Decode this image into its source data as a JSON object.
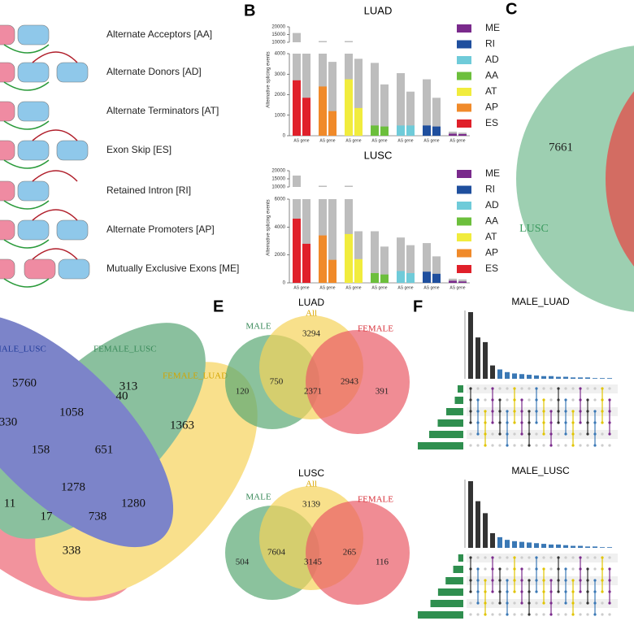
{
  "panel_a": {
    "events": [
      "Alternate Acceptors [AA]",
      "Alternate Donors [AD]",
      "Alternate Terminators [AT]",
      "Exon Skip [ES]",
      "Retained Intron [RI]",
      "Alternate Promoters [AP]",
      "Mutually Exclusive Exons [ME]"
    ]
  },
  "panel_b": {
    "label": "B",
    "ylabel": "Alternative splicing events",
    "x_label": "AS gene",
    "series": [
      {
        "name": "ME",
        "color": "#7a2a8c"
      },
      {
        "name": "RI",
        "color": "#1f4f9e"
      },
      {
        "name": "AD",
        "color": "#6fcbd9"
      },
      {
        "name": "AA",
        "color": "#6cbf3c"
      },
      {
        "name": "AT",
        "color": "#f1ec3d"
      },
      {
        "name": "AP",
        "color": "#f08a2a"
      },
      {
        "name": "ES",
        "color": "#e0202a"
      }
    ],
    "charts": [
      {
        "title": "LUAD",
        "ylim": [
          0,
          4000
        ],
        "yticks": [
          0,
          1000,
          2000,
          3000,
          4000
        ],
        "ylim_upper": [
          10000,
          20000
        ],
        "yticks_upper": [
          10000,
          15000,
          20000
        ],
        "totals": [
          [
            200,
            150
          ],
          [
            2750,
            1850
          ],
          [
            3050,
            2150
          ],
          [
            3550,
            2500
          ],
          [
            9000,
            3750
          ],
          [
            9000,
            3600
          ],
          [
            16000,
            4000
          ]
        ],
        "values": [
          [
            100,
            80
          ],
          [
            500,
            450
          ],
          [
            500,
            500
          ],
          [
            500,
            450
          ],
          [
            2750,
            1350
          ],
          [
            2400,
            1200
          ],
          [
            2700,
            1850
          ]
        ]
      },
      {
        "title": "LUSC",
        "ylim": [
          0,
          6000
        ],
        "yticks": [
          0,
          2000,
          4000,
          6000
        ],
        "ylim_upper": [
          10000,
          20000
        ],
        "yticks_upper": [
          10000,
          15000,
          20000
        ],
        "totals": [
          [
            300,
            250
          ],
          [
            2850,
            1900
          ],
          [
            3250,
            2700
          ],
          [
            3700,
            2600
          ],
          [
            9600,
            3700
          ],
          [
            9800,
            6000
          ],
          [
            17000,
            6000
          ]
        ],
        "values": [
          [
            150,
            100
          ],
          [
            800,
            650
          ],
          [
            850,
            700
          ],
          [
            700,
            600
          ],
          [
            3500,
            1700
          ],
          [
            3400,
            1650
          ],
          [
            4600,
            2800
          ]
        ]
      }
    ]
  },
  "panel_c": {
    "label": "C",
    "count": "7661",
    "set": "LUSC"
  },
  "panel_d": {
    "sets": [
      "MALE_LUSC",
      "FEMALE_LUSC",
      "FEMALE_LUAD"
    ],
    "counts": [
      "5760",
      "313",
      "330",
      "1058",
      "40",
      "1363",
      "158",
      "651",
      "1278",
      "11",
      "17",
      "738",
      "1280",
      "338"
    ]
  },
  "panel_e": {
    "label": "E",
    "venns": [
      {
        "title": "LUAD",
        "sets": [
          "MALE",
          "All",
          "FEMALE"
        ],
        "counts": [
          "3294",
          "120",
          "750",
          "2371",
          "2943",
          "391"
        ]
      },
      {
        "title": "LUSC",
        "sets": [
          "MALE",
          "All",
          "FEMALE"
        ],
        "counts": [
          "3139",
          "504",
          "7604",
          "3145",
          "265",
          "116"
        ]
      }
    ]
  },
  "panel_f": {
    "label": "F",
    "plots": [
      {
        "title": "MALE_LUAD",
        "intersections": [
          100,
          62,
          55,
          20,
          14,
          10,
          8,
          7,
          6,
          5,
          4,
          4,
          3,
          3,
          2,
          2,
          2,
          1,
          1,
          1
        ],
        "set_sizes": [
          10,
          15,
          30,
          45,
          60,
          80
        ]
      },
      {
        "title": "MALE_LUSC",
        "intersections": [
          100,
          70,
          52,
          22,
          16,
          12,
          10,
          9,
          8,
          7,
          6,
          5,
          5,
          4,
          3,
          3,
          2,
          2,
          1,
          1
        ],
        "set_sizes": [
          10,
          20,
          35,
          50,
          65,
          90
        ]
      }
    ]
  }
}
